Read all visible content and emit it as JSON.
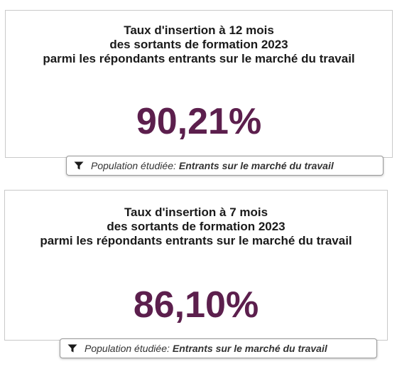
{
  "cards": [
    {
      "title_lines": [
        "Taux d'insertion à 12 mois",
        "des sortants de formation 2023",
        "parmi les répondants entrants sur le marché du travail"
      ],
      "value": "90,21%",
      "filter": {
        "icon": "filter-icon",
        "label": "Population étudiée",
        "separator": " :",
        "value": "Entrants sur le marché du travail"
      }
    },
    {
      "title_lines": [
        "Taux d'insertion à 7 mois",
        "des sortants de formation 2023",
        "parmi les répondants entrants sur le marché du travail"
      ],
      "value": "86,10%",
      "filter": {
        "icon": "filter-icon",
        "label": "Population étudiée",
        "separator": " :",
        "value": "Entrants sur le marché du travail"
      }
    }
  ],
  "colors": {
    "value": "#5c1f4d",
    "title": "#1a1a1a",
    "border": "#c9c9c9"
  }
}
